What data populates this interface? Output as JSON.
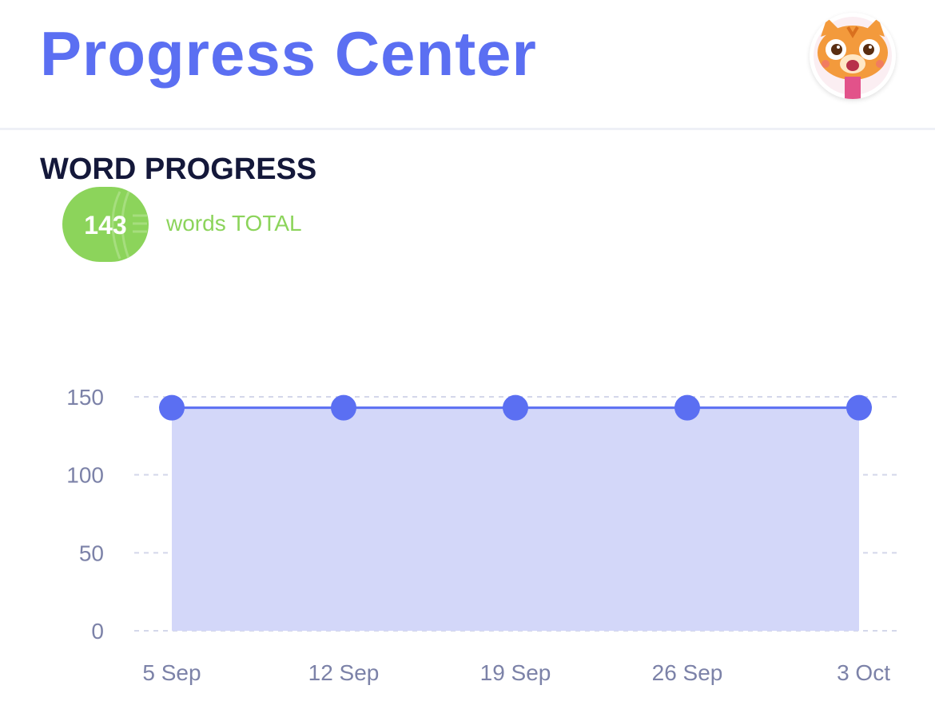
{
  "header": {
    "title": "Progress Center",
    "avatar_icon": "tiger-cub-avatar-icon"
  },
  "word_progress": {
    "section_title": "WORD PROGRESS",
    "total_count": "143",
    "total_label": "words TOTAL",
    "badge_color": "#8cd45b"
  },
  "colors": {
    "accent": "#5b6ff2",
    "area_fill": "#d3d7f9",
    "grid": "#d4d7ea",
    "tick_text": "#7c82a8"
  },
  "chart_data": {
    "type": "area",
    "categories": [
      "5 Sep",
      "12 Sep",
      "19 Sep",
      "26 Sep",
      "3 Oct"
    ],
    "values": [
      143,
      143,
      143,
      143,
      143
    ],
    "yticks": [
      0,
      50,
      100,
      150
    ],
    "ylim": [
      0,
      150
    ],
    "grid": true,
    "markers": true
  }
}
